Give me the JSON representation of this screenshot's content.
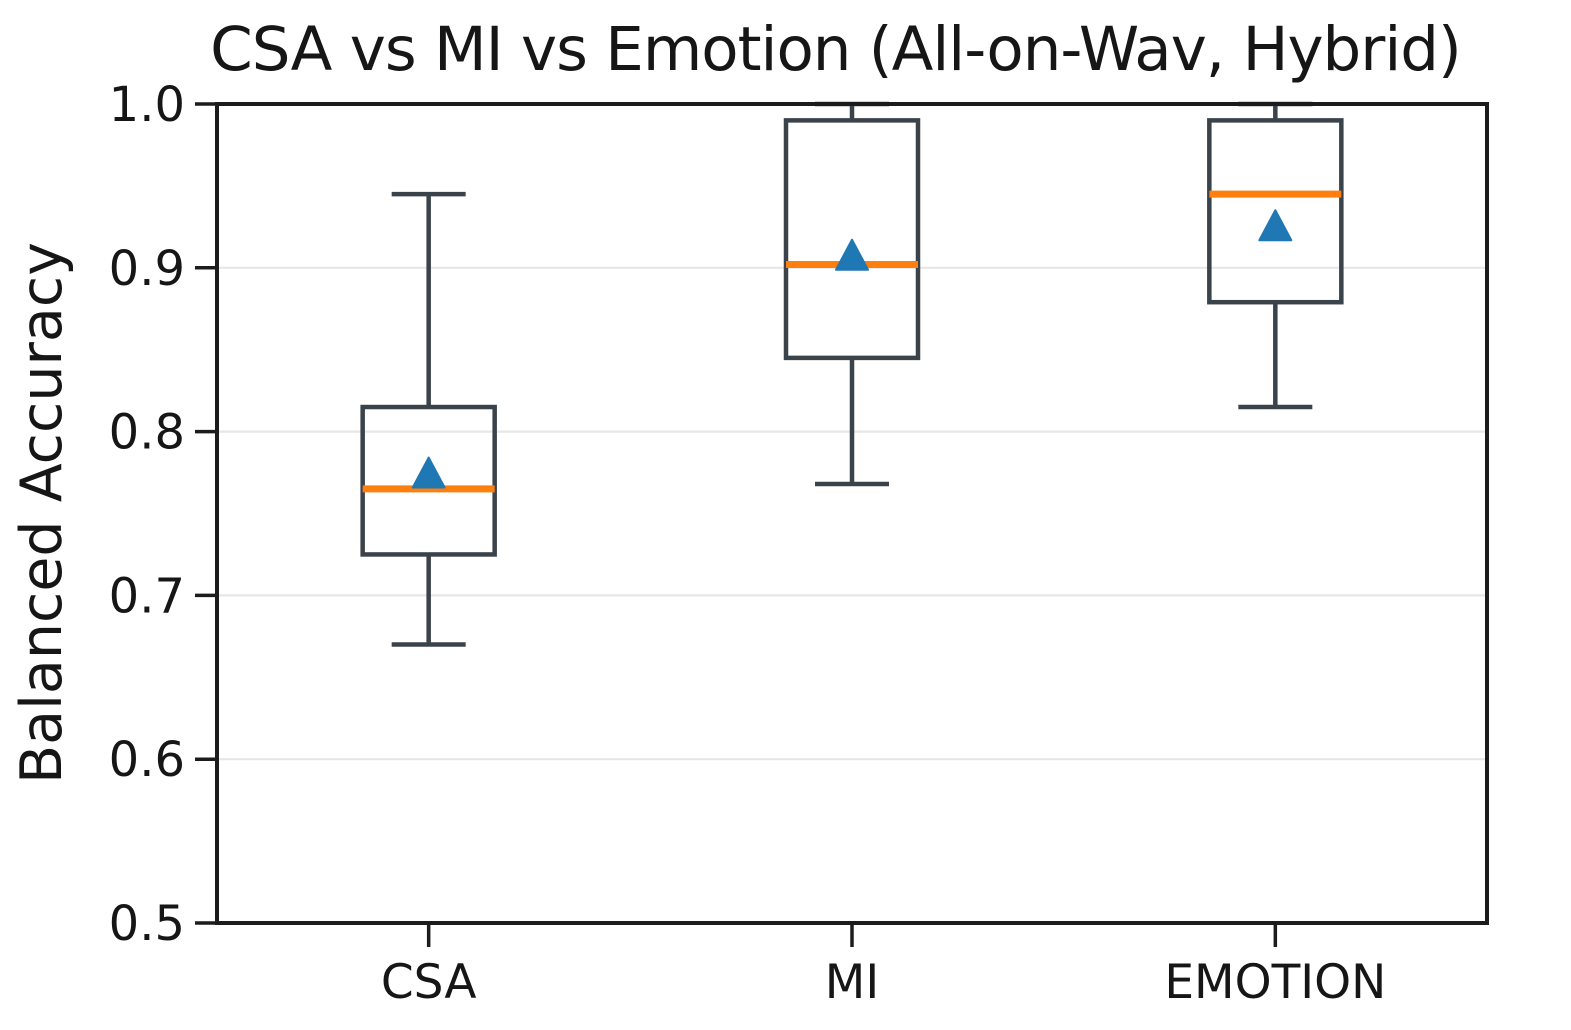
{
  "figure": {
    "title": "CSA vs MI vs Emotion (All-on-Wav, Hybrid)",
    "ylabel": "Balanced Accuracy"
  },
  "chart_data": {
    "type": "boxplot",
    "title": "CSA vs MI vs Emotion (All-on-Wav, Hybrid)",
    "xlabel": "",
    "ylabel": "Balanced Accuracy",
    "ylim": [
      0.5,
      1.0
    ],
    "yticks": [
      0.5,
      0.6,
      0.7,
      0.8,
      0.9,
      1.0
    ],
    "ytick_labels": [
      "0.5",
      "0.6",
      "0.7",
      "0.8",
      "0.9",
      "1.0"
    ],
    "grid": "horizontal-light",
    "legend": "none",
    "categories": [
      "CSA",
      "MI",
      "EMOTION"
    ],
    "mean_marker_shape": "triangle_up",
    "series": [
      {
        "name": "CSA",
        "whisker_low": 0.67,
        "q1": 0.725,
        "median": 0.765,
        "mean": 0.775,
        "q3": 0.815,
        "whisker_high": 0.945
      },
      {
        "name": "MI",
        "whisker_low": 0.768,
        "q1": 0.845,
        "median": 0.902,
        "mean": 0.908,
        "q3": 0.99,
        "whisker_high": 1.0
      },
      {
        "name": "EMOTION",
        "whisker_low": 0.815,
        "q1": 0.879,
        "median": 0.945,
        "mean": 0.926,
        "q3": 0.99,
        "whisker_high": 1.0
      }
    ],
    "colors": {
      "background": "#ffffff",
      "spine": "#1c1c1c",
      "text": "#161616",
      "box_edge": "#3a424a",
      "median": "#ff7f0e",
      "mean_marker": "#1f77b4",
      "grid": "#e7e7e7"
    }
  }
}
